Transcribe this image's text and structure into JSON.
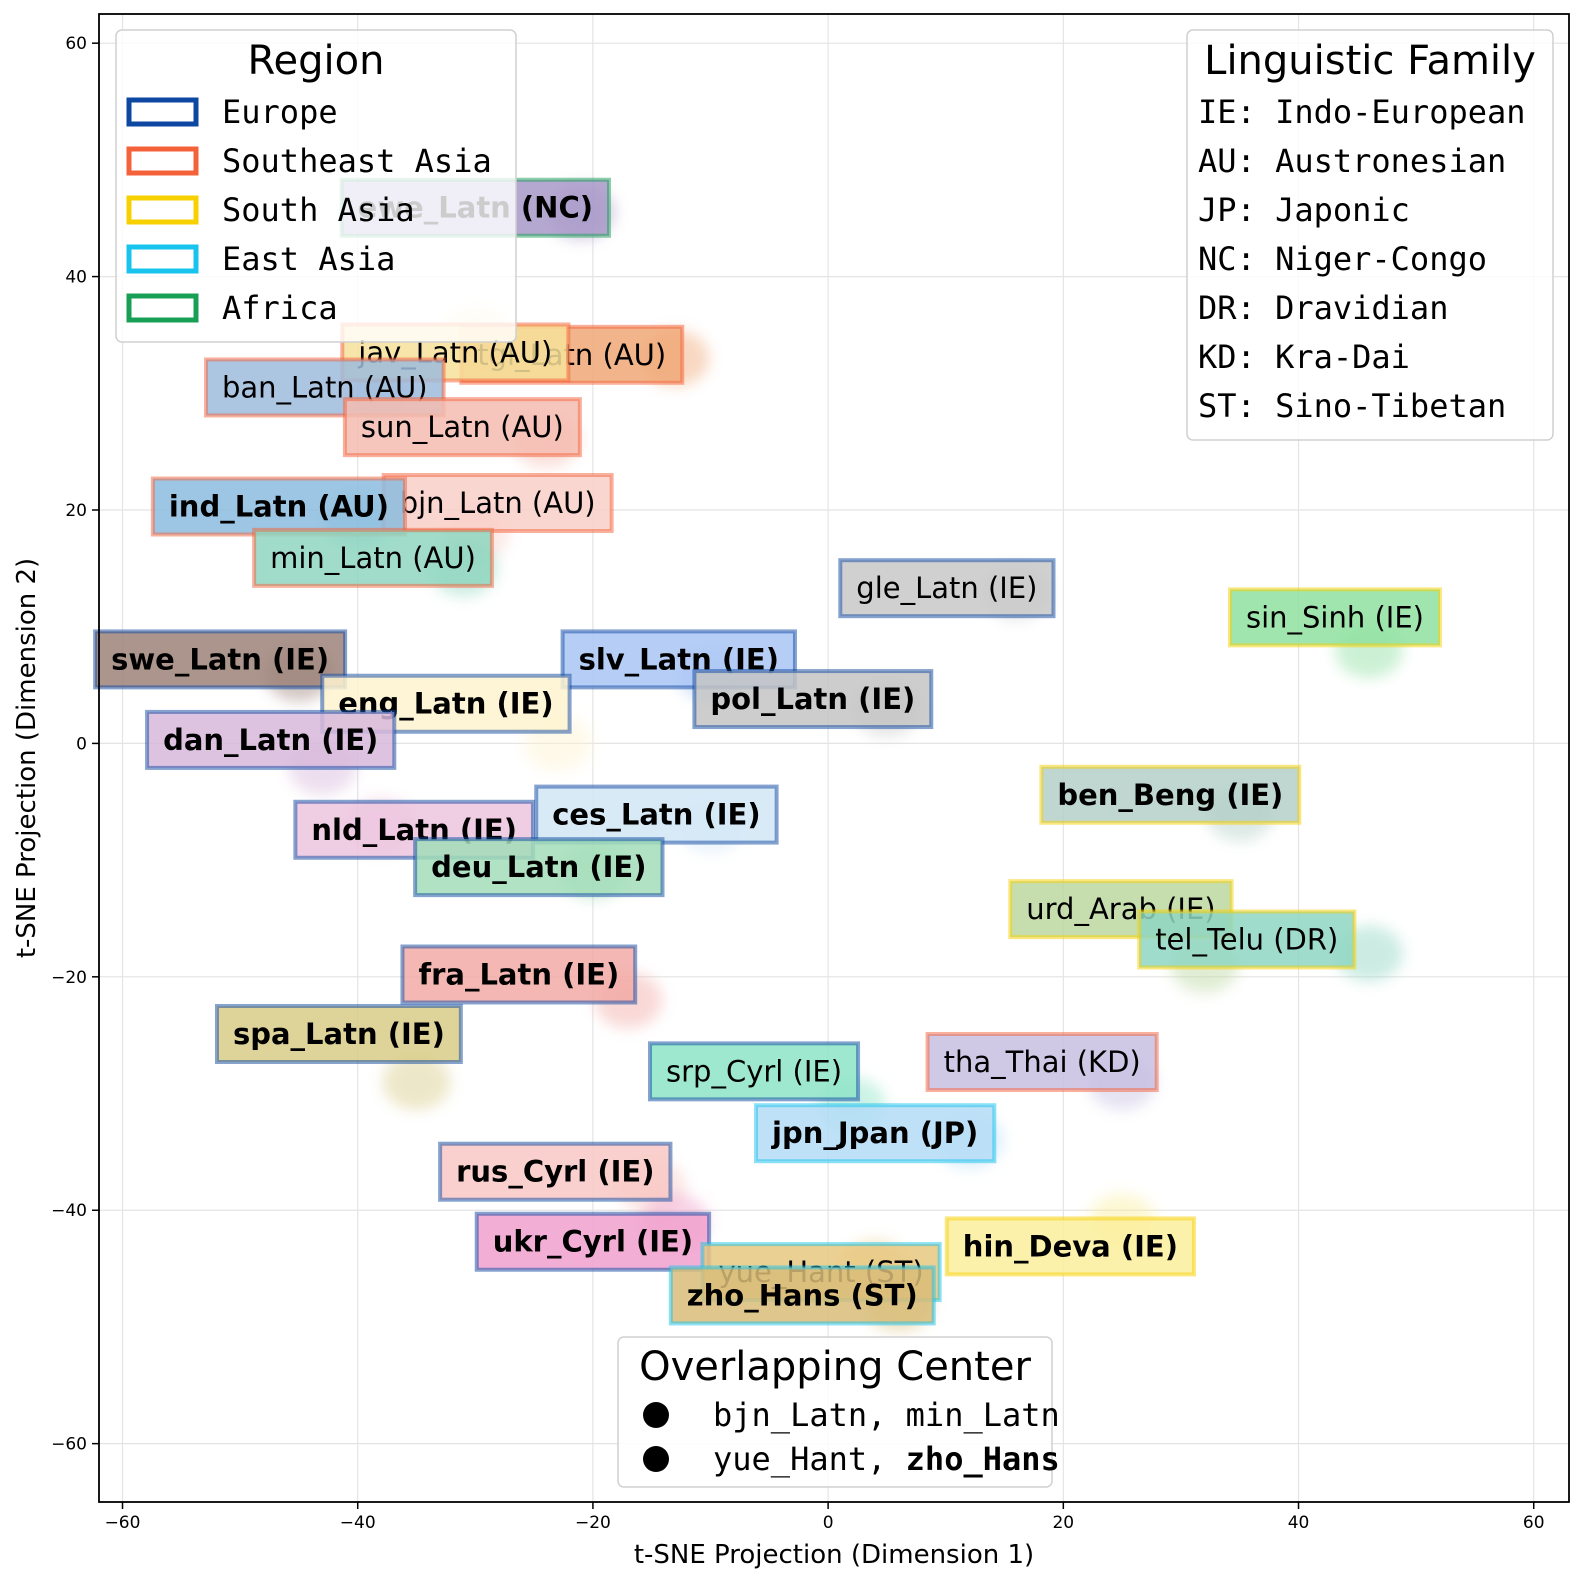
{
  "chart_data": {
    "type": "scatter",
    "xlabel": "t-SNE Projection (Dimension 1)",
    "ylabel": "t-SNE Projection (Dimension 2)",
    "xlim": [
      -62,
      63
    ],
    "ylim": [
      -65,
      62.5
    ],
    "xticks": [
      -60,
      -40,
      -20,
      0,
      20,
      40,
      60
    ],
    "yticks": [
      -60,
      -40,
      -20,
      0,
      20,
      40,
      60
    ],
    "xtick_labels": [
      "−60",
      "−40",
      "−20",
      "0",
      "20",
      "40",
      "60"
    ],
    "ytick_labels": [
      "−60",
      "−40",
      "−20",
      "0",
      "20",
      "40",
      "60"
    ],
    "grid": true,
    "region_colors": {
      "Europe": "#0d47a1",
      "Southeast Asia": "#f4623a",
      "South Asia": "#f7d000",
      "East Asia": "#18c3ee",
      "Africa": "#17a055"
    },
    "labels": [
      {
        "text": "ewe_Latn (NC)",
        "x": -30,
        "y": 45.9,
        "bold": true,
        "region": "Africa",
        "fill": "#a899c8",
        "cluster": [
          -21,
          45.5
        ]
      },
      {
        "text": "tgl_Latn (AU)",
        "x": -21.8,
        "y": 33.3,
        "bold": false,
        "region": "Southeast Asia",
        "fill": "#f0a877",
        "cluster": [
          -13,
          33
        ]
      },
      {
        "text": "jav_Latn (AU)",
        "x": -31.7,
        "y": 33.5,
        "bold": false,
        "region": "Southeast Asia",
        "fill": "#f7e09a",
        "cluster": [
          -30,
          35
        ]
      },
      {
        "text": "ban_Latn (AU)",
        "x": -42.8,
        "y": 30.5,
        "bold": false,
        "region": "Southeast Asia",
        "fill": "#9ebbdc",
        "cluster": [
          -38,
          30
        ]
      },
      {
        "text": "sun_Latn (AU)",
        "x": -31.1,
        "y": 27.1,
        "bold": false,
        "region": "Southeast Asia",
        "fill": "#f4bcb0",
        "cluster": [
          -24,
          26
        ]
      },
      {
        "text": "bjn_Latn (AU)",
        "x": -28.1,
        "y": 20.6,
        "bold": false,
        "region": "Southeast Asia",
        "fill": "#f9cfc8",
        "cluster": [
          -30,
          18
        ]
      },
      {
        "text": "ind_Latn (AU)",
        "x": -46.7,
        "y": 20.3,
        "bold": true,
        "region": "Southeast Asia",
        "fill": "#8bbcde",
        "cluster": [
          -40,
          19
        ]
      },
      {
        "text": "min_Latn (AU)",
        "x": -38.7,
        "y": 15.9,
        "bold": false,
        "region": "Southeast Asia",
        "fill": "#8fd6c0",
        "cluster": [
          -31,
          15
        ]
      },
      {
        "text": "gle_Latn (IE)",
        "x": 10.1,
        "y": 13.3,
        "bold": false,
        "region": "Europe",
        "fill": "#c8c8c8",
        "cluster": [
          16,
          13
        ]
      },
      {
        "text": "sin_Sinh (IE)",
        "x": 43.1,
        "y": 10.8,
        "bold": false,
        "region": "South Asia",
        "fill": "#8fe0a0",
        "cluster": [
          46,
          8
        ]
      },
      {
        "text": "swe_Latn (IE)",
        "x": -51.7,
        "y": 7.2,
        "bold": true,
        "region": "Europe",
        "fill": "#9c8279",
        "cluster": [
          -45,
          6
        ]
      },
      {
        "text": "slv_Latn (IE)",
        "x": -12.7,
        "y": 7.2,
        "bold": true,
        "region": "Europe",
        "fill": "#a9c6f5",
        "cluster": [
          -10,
          6
        ]
      },
      {
        "text": "pol_Latn (IE)",
        "x": -1.3,
        "y": 3.8,
        "bold": true,
        "region": "Europe",
        "fill": "#c4c4c4",
        "cluster": [
          5,
          3
        ]
      },
      {
        "text": "eng_Latn (IE)",
        "x": -32.5,
        "y": 3.4,
        "bold": true,
        "region": "Europe",
        "fill": "#fef3d0",
        "cluster": [
          -23,
          0
        ]
      },
      {
        "text": "dan_Latn (IE)",
        "x": -47.4,
        "y": 0.3,
        "bold": true,
        "region": "Europe",
        "fill": "#d8b8dc",
        "cluster": [
          -43,
          -2
        ]
      },
      {
        "text": "ben_Beng (IE)",
        "x": 29.1,
        "y": -4.4,
        "bold": true,
        "region": "South Asia",
        "fill": "#b4d0c8",
        "cluster": [
          35,
          -6
        ]
      },
      {
        "text": "ces_Latn (IE)",
        "x": -14.6,
        "y": -6.1,
        "bold": true,
        "region": "Europe",
        "fill": "#d2e6f6",
        "cluster": [
          -10,
          -7
        ]
      },
      {
        "text": "nld_Latn (IE)",
        "x": -35.2,
        "y": -7.4,
        "bold": true,
        "region": "Europe",
        "fill": "#ecc4de",
        "cluster": [
          -38,
          -7
        ]
      },
      {
        "text": "deu_Latn (IE)",
        "x": -24.6,
        "y": -10.6,
        "bold": true,
        "region": "Europe",
        "fill": "#a2ddb8",
        "cluster": [
          -20,
          -11
        ]
      },
      {
        "text": "urd_Arab (IE)",
        "x": 24.9,
        "y": -14.2,
        "bold": false,
        "region": "South Asia",
        "fill": "#bcd8a0",
        "cluster": [
          32,
          -19
        ]
      },
      {
        "text": "tel_Telu (DR)",
        "x": 35.6,
        "y": -16.8,
        "bold": false,
        "region": "South Asia",
        "fill": "#8fd6c2",
        "cluster": [
          46,
          -18
        ]
      },
      {
        "text": "fra_Latn (IE)",
        "x": -26.3,
        "y": -19.8,
        "bold": true,
        "region": "Europe",
        "fill": "#f2aaa6",
        "cluster": [
          -17,
          -22
        ]
      },
      {
        "text": "spa_Latn (IE)",
        "x": -41.6,
        "y": -24.9,
        "bold": true,
        "region": "Europe",
        "fill": "#d8cc88",
        "cluster": [
          -35,
          -29
        ]
      },
      {
        "text": "tha_Thai (KD)",
        "x": 18.2,
        "y": -27.3,
        "bold": false,
        "region": "Southeast Asia",
        "fill": "#c8c0e2",
        "cluster": [
          25,
          -29
        ]
      },
      {
        "text": "srp_Cyrl (IE)",
        "x": -6.3,
        "y": -28.1,
        "bold": false,
        "region": "Europe",
        "fill": "#8ee4c8",
        "cluster": [
          2,
          -31
        ]
      },
      {
        "text": "jpn_Jpan (JP)",
        "x": 4.0,
        "y": -33.4,
        "bold": true,
        "region": "East Asia",
        "fill": "#b4dcf6",
        "cluster": [
          12,
          -34
        ]
      },
      {
        "text": "rus_Cyrl (IE)",
        "x": -23.2,
        "y": -36.7,
        "bold": true,
        "region": "Europe",
        "fill": "#f8c8c4",
        "cluster": [
          -15,
          -38
        ]
      },
      {
        "text": "ukr_Cyrl (IE)",
        "x": -20.0,
        "y": -42.7,
        "bold": true,
        "region": "Europe",
        "fill": "#f0a0cc",
        "cluster": [
          -13,
          -41
        ]
      },
      {
        "text": "hin_Deva (IE)",
        "x": 20.6,
        "y": -43.1,
        "bold": true,
        "region": "South Asia",
        "fill": "#faee9c",
        "cluster": [
          25,
          -41
        ]
      },
      {
        "text": "yue_Hant (ST)",
        "x": -0.6,
        "y": -45.3,
        "bold": false,
        "region": "East Asia",
        "fill": "#e8c880",
        "cluster": [
          4,
          -45
        ]
      },
      {
        "text": "zho_Hans (ST)",
        "x": -2.2,
        "y": -47.3,
        "bold": true,
        "region": "East Asia",
        "fill": "#d8bc78",
        "cluster": [
          6,
          -48
        ]
      }
    ],
    "legends": {
      "region": {
        "title": "Region",
        "entries": [
          {
            "label": "Europe",
            "color": "#0d47a1"
          },
          {
            "label": "Southeast Asia",
            "color": "#f4623a"
          },
          {
            "label": "South Asia",
            "color": "#f7d000"
          },
          {
            "label": "East Asia",
            "color": "#18c3ee"
          },
          {
            "label": "Africa",
            "color": "#17a055"
          }
        ]
      },
      "family": {
        "title": "Linguistic Family",
        "entries": [
          "IE: Indo-European",
          "AU: Austronesian",
          "JP: Japonic",
          "NC: Niger-Congo",
          "DR: Dravidian",
          "KD: Kra-Dai",
          "ST: Sino-Tibetan"
        ]
      },
      "overlap": {
        "title": "Overlapping Center",
        "entries": [
          {
            "first": "bjn_Latn, ",
            "second": "min_Latn",
            "second_bold": false
          },
          {
            "first": "yue_Hant, ",
            "second": "zho_Hans",
            "second_bold": true
          }
        ]
      }
    }
  }
}
